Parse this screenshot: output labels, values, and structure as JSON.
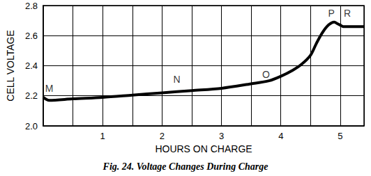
{
  "chart_data": {
    "type": "line",
    "title": "Fig. 24. Voltage Changes During Charge",
    "x_label": "HOURS ON CHARGE",
    "y_label": "CELL VOLTAGE",
    "x": [
      0,
      0.1,
      0.5,
      1,
      1.5,
      2,
      2.5,
      3,
      3.5,
      3.8,
      4,
      4.2,
      4.35,
      4.5,
      4.6,
      4.7,
      4.8,
      4.9,
      4.95,
      5.0,
      5.05,
      5.2,
      5.4
    ],
    "values": [
      2.19,
      2.17,
      2.18,
      2.19,
      2.205,
      2.22,
      2.235,
      2.25,
      2.28,
      2.3,
      2.33,
      2.37,
      2.41,
      2.47,
      2.55,
      2.62,
      2.67,
      2.69,
      2.68,
      2.67,
      2.66,
      2.66,
      2.66
    ],
    "color": "#000000",
    "xlim": [
      0,
      5.4
    ],
    "xticks": [
      1,
      2,
      3,
      4,
      5
    ],
    "ylim": [
      2.0,
      2.8
    ],
    "yticks": [
      {
        "value": 2.0,
        "label": "2.0"
      },
      2.2,
      2.4,
      2.6,
      2.8
    ],
    "grid": true,
    "annotations": [
      {
        "text": "M",
        "x": 0.1,
        "y": 2.25
      },
      {
        "text": "N",
        "x": 2.25,
        "y": 2.31
      },
      {
        "text": "O",
        "x": 3.75,
        "y": 2.34
      },
      {
        "text": "P",
        "x": 4.85,
        "y": 2.75
      },
      {
        "text": "R",
        "x": 5.12,
        "y": 2.75
      }
    ]
  }
}
